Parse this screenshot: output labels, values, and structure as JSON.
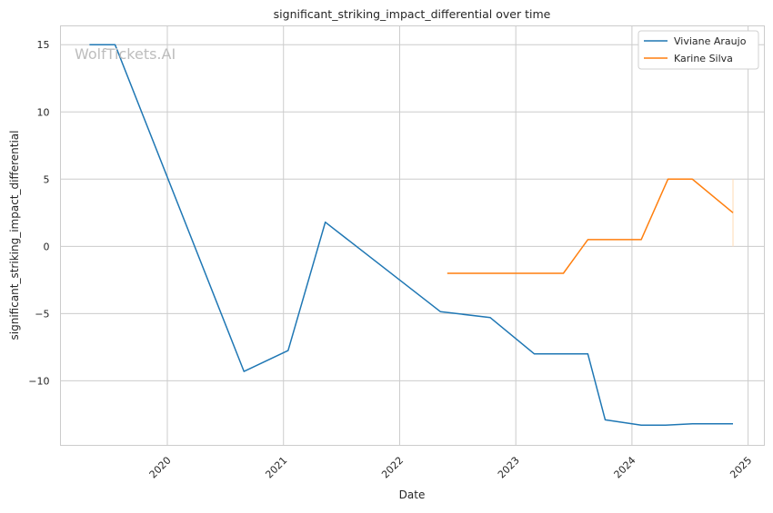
{
  "chart_data": {
    "type": "line",
    "title": "significant_striking_impact_differential over time",
    "xlabel": "Date",
    "ylabel": "significant_striking_impact_differential",
    "xlim": [
      2019.08,
      2025.14
    ],
    "ylim": [
      -14.8,
      16.4
    ],
    "x_ticks": [
      2020,
      2021,
      2022,
      2023,
      2024,
      2025
    ],
    "x_tick_labels": [
      "2020",
      "2021",
      "2022",
      "2023",
      "2024",
      "2025"
    ],
    "y_ticks": [
      15,
      10,
      5,
      0,
      -5,
      -10
    ],
    "y_tick_labels": [
      "15",
      "10",
      "5",
      "0",
      "−5",
      "−10"
    ],
    "grid": true,
    "legend_position": "top-right",
    "watermark": "WolfTickets.AI",
    "series": [
      {
        "name": "Viviane Araujo",
        "color": "#1f77b4",
        "x": [
          2019.33,
          2019.55,
          2020.66,
          2021.04,
          2021.36,
          2022.35,
          2022.78,
          2023.16,
          2023.62,
          2023.77,
          2024.08,
          2024.29,
          2024.52,
          2024.87
        ],
        "y": [
          15,
          15,
          -9.3,
          -7.75,
          1.8,
          -4.85,
          -5.3,
          -8,
          -8,
          -12.9,
          -13.3,
          -13.3,
          -13.2,
          -13.2
        ]
      },
      {
        "name": "Karine Silva",
        "color": "#ff7f0e",
        "x": [
          2022.41,
          2023.41,
          2023.62,
          2024.08,
          2024.31,
          2024.52,
          2024.87
        ],
        "y": [
          -2,
          -2,
          0.5,
          0.5,
          5,
          5,
          2.5
        ]
      }
    ],
    "annotations": [
      {
        "type": "vertical-band",
        "x": 2024.87,
        "y_from": 0,
        "y_to": 5,
        "color": "#ffe0c0"
      }
    ]
  }
}
